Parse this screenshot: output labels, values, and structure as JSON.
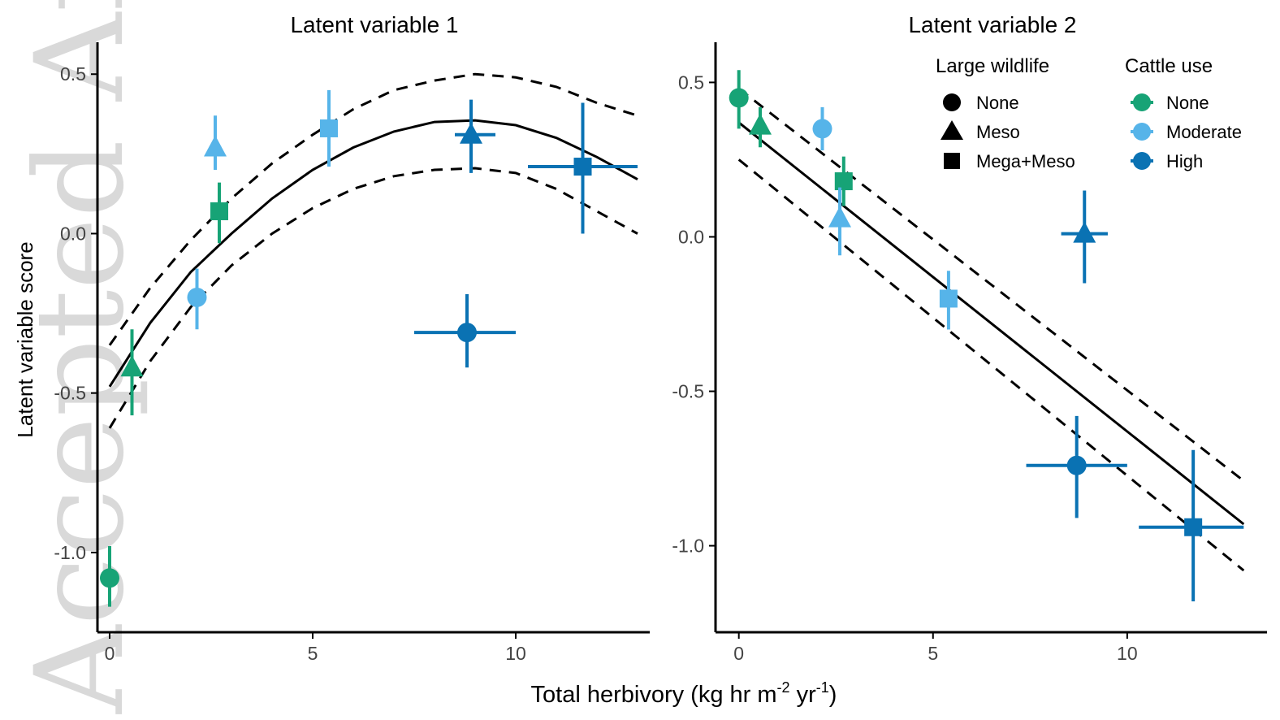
{
  "figure": {
    "xlabel": "Total herbivory (kg hr m",
    "xlabel_sup1": "-2",
    "xlabel_mid": " yr",
    "xlabel_sup2": "-1",
    "xlabel_end": ")",
    "ylabel": "Latent variable score",
    "watermark_text": "Accepted Article"
  },
  "legend": {
    "wildlife_title": "Large wildlife",
    "wildlife_items": [
      {
        "label": "None",
        "shape": "circle"
      },
      {
        "label": "Meso",
        "shape": "triangle"
      },
      {
        "label": "Mega+Meso",
        "shape": "square"
      }
    ],
    "cattle_title": "Cattle use",
    "cattle_items": [
      {
        "label": "None",
        "color": "#17a376"
      },
      {
        "label": "Moderate",
        "color": "#56b4e9"
      },
      {
        "label": "High",
        "color": "#0a72b3"
      }
    ]
  },
  "colors": {
    "None": "#17a376",
    "Moderate": "#56b4e9",
    "High": "#0a72b3"
  },
  "chart_data": [
    {
      "type": "scatter",
      "title": "Latent variable 1",
      "xlim": [
        -0.3,
        13.3
      ],
      "ylim": [
        -1.25,
        0.6
      ],
      "xticks": [
        0,
        5,
        10
      ],
      "yticks": [
        -1.0,
        -0.5,
        0.0,
        0.5
      ],
      "ytick_labels": [
        "-1.0",
        "-0.5",
        "0.0",
        "0.5"
      ],
      "points": [
        {
          "x": 0.0,
          "y": -1.08,
          "ylo": -0.98,
          "yhi": -1.17,
          "wildlife": "None",
          "cattle": "None"
        },
        {
          "x": 0.55,
          "y": -0.42,
          "ylo": -0.57,
          "yhi": -0.3,
          "wildlife": "Meso",
          "cattle": "None"
        },
        {
          "x": 2.7,
          "y": 0.07,
          "ylo": -0.03,
          "yhi": 0.16,
          "wildlife": "Mega+Meso",
          "cattle": "None"
        },
        {
          "x": 2.15,
          "y": -0.2,
          "ylo": -0.3,
          "yhi": -0.11,
          "wildlife": "None",
          "cattle": "Moderate"
        },
        {
          "x": 2.6,
          "y": 0.27,
          "ylo": 0.2,
          "yhi": 0.37,
          "wildlife": "Meso",
          "cattle": "Moderate"
        },
        {
          "x": 5.4,
          "y": 0.33,
          "ylo": 0.21,
          "yhi": 0.45,
          "wildlife": "Mega+Meso",
          "cattle": "Moderate"
        },
        {
          "x": 8.8,
          "y": -0.31,
          "ylo": -0.42,
          "yhi": -0.19,
          "xlo": 7.5,
          "xhi": 10.0,
          "wildlife": "None",
          "cattle": "High"
        },
        {
          "x": 8.9,
          "y": 0.31,
          "ylo": 0.19,
          "yhi": 0.42,
          "xlo": 8.5,
          "xhi": 9.5,
          "wildlife": "Meso",
          "cattle": "High"
        },
        {
          "x": 11.65,
          "y": 0.21,
          "ylo": 0.0,
          "yhi": 0.41,
          "xlo": 10.3,
          "xhi": 13.0,
          "wildlife": "Mega+Meso",
          "cattle": "High"
        }
      ],
      "fit": {
        "x": [
          0,
          1,
          2,
          3,
          4,
          5,
          6,
          7,
          8,
          9,
          10,
          11,
          12,
          13
        ],
        "y": [
          -0.48,
          -0.28,
          -0.12,
          0.0,
          0.11,
          0.2,
          0.27,
          0.32,
          0.35,
          0.355,
          0.34,
          0.3,
          0.24,
          0.17
        ]
      },
      "fit_upper": {
        "x": [
          0,
          1,
          2,
          3,
          4,
          5,
          6,
          7,
          8,
          9,
          10,
          11,
          12,
          13
        ],
        "y": [
          -0.35,
          -0.17,
          -0.02,
          0.11,
          0.22,
          0.31,
          0.39,
          0.45,
          0.48,
          0.5,
          0.49,
          0.46,
          0.41,
          0.37
        ]
      },
      "fit_lower": {
        "x": [
          0,
          1,
          2,
          3,
          4,
          5,
          6,
          7,
          8,
          9,
          10,
          11,
          12,
          13
        ],
        "y": [
          -0.61,
          -0.4,
          -0.23,
          -0.1,
          0.0,
          0.08,
          0.14,
          0.18,
          0.2,
          0.205,
          0.19,
          0.14,
          0.07,
          0.0
        ]
      }
    },
    {
      "type": "scatter",
      "title": "Latent variable 2",
      "xlim": [
        -0.6,
        13.6
      ],
      "ylim": [
        -1.28,
        0.63
      ],
      "xticks": [
        0,
        5,
        10
      ],
      "yticks": [
        -1.0,
        -0.5,
        0.0,
        0.5
      ],
      "ytick_labels": [
        "-1.0",
        "-0.5",
        "0.0",
        "0.5"
      ],
      "points": [
        {
          "x": 0.0,
          "y": 0.45,
          "ylo": 0.35,
          "yhi": 0.54,
          "wildlife": "None",
          "cattle": "None"
        },
        {
          "x": 0.55,
          "y": 0.36,
          "ylo": 0.29,
          "yhi": 0.42,
          "wildlife": "Meso",
          "cattle": "None"
        },
        {
          "x": 2.7,
          "y": 0.18,
          "ylo": 0.1,
          "yhi": 0.26,
          "wildlife": "Mega+Meso",
          "cattle": "None"
        },
        {
          "x": 2.15,
          "y": 0.35,
          "ylo": 0.28,
          "yhi": 0.42,
          "wildlife": "None",
          "cattle": "Moderate"
        },
        {
          "x": 2.6,
          "y": 0.06,
          "ylo": -0.06,
          "yhi": 0.16,
          "wildlife": "Meso",
          "cattle": "Moderate"
        },
        {
          "x": 5.4,
          "y": -0.2,
          "ylo": -0.3,
          "yhi": -0.11,
          "wildlife": "Mega+Meso",
          "cattle": "Moderate"
        },
        {
          "x": 8.7,
          "y": -0.74,
          "ylo": -0.91,
          "yhi": -0.58,
          "xlo": 7.4,
          "xhi": 10.0,
          "wildlife": "None",
          "cattle": "High"
        },
        {
          "x": 8.9,
          "y": 0.01,
          "ylo": -0.15,
          "yhi": 0.15,
          "xlo": 8.3,
          "xhi": 9.5,
          "wildlife": "Meso",
          "cattle": "High"
        },
        {
          "x": 11.7,
          "y": -0.94,
          "ylo": -1.18,
          "yhi": -0.69,
          "xlo": 10.3,
          "xhi": 13.0,
          "wildlife": "Mega+Meso",
          "cattle": "High"
        }
      ],
      "fit": {
        "x": [
          0,
          13
        ],
        "y": [
          0.37,
          -0.93
        ]
      },
      "fit_upper": {
        "x": [
          0,
          13
        ],
        "y": [
          0.48,
          -0.79
        ]
      },
      "fit_lower": {
        "x": [
          0,
          13
        ],
        "y": [
          0.25,
          -1.08
        ]
      }
    }
  ]
}
